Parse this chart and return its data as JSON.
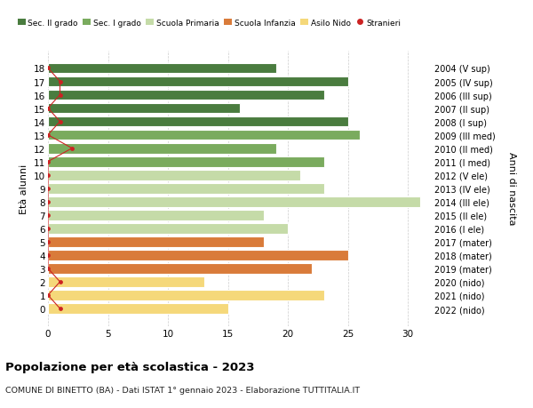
{
  "ages": [
    18,
    17,
    16,
    15,
    14,
    13,
    12,
    11,
    10,
    9,
    8,
    7,
    6,
    5,
    4,
    3,
    2,
    1,
    0
  ],
  "right_labels": [
    "2004 (V sup)",
    "2005 (IV sup)",
    "2006 (III sup)",
    "2007 (II sup)",
    "2008 (I sup)",
    "2009 (III med)",
    "2010 (II med)",
    "2011 (I med)",
    "2012 (V ele)",
    "2013 (IV ele)",
    "2014 (III ele)",
    "2015 (II ele)",
    "2016 (I ele)",
    "2017 (mater)",
    "2018 (mater)",
    "2019 (mater)",
    "2020 (nido)",
    "2021 (nido)",
    "2022 (nido)"
  ],
  "bar_values": [
    19,
    25,
    23,
    16,
    25,
    26,
    19,
    23,
    21,
    23,
    31,
    18,
    20,
    18,
    25,
    22,
    13,
    23,
    15
  ],
  "bar_colors": [
    "#4a7c3f",
    "#4a7c3f",
    "#4a7c3f",
    "#4a7c3f",
    "#4a7c3f",
    "#7aab5e",
    "#7aab5e",
    "#7aab5e",
    "#c5dba8",
    "#c5dba8",
    "#c5dba8",
    "#c5dba8",
    "#c5dba8",
    "#d97b3a",
    "#d97b3a",
    "#d97b3a",
    "#f5d87a",
    "#f5d87a",
    "#f5d87a"
  ],
  "stranieri_values": [
    0,
    1,
    1,
    0,
    1,
    0,
    2,
    0,
    0,
    0,
    0,
    0,
    0,
    0,
    0,
    0,
    1,
    0,
    1
  ],
  "stranieri_color": "#cc2222",
  "ylabel": "Età alunni",
  "right_ylabel": "Anni di nascita",
  "xlim": [
    0,
    32
  ],
  "xticks": [
    0,
    5,
    10,
    15,
    20,
    25,
    30
  ],
  "title": "Popolazione per età scolastica - 2023",
  "subtitle": "COMUNE DI BINETTO (BA) - Dati ISTAT 1° gennaio 2023 - Elaborazione TUTTITALIA.IT",
  "legend_labels": [
    "Sec. II grado",
    "Sec. I grado",
    "Scuola Primaria",
    "Scuola Infanzia",
    "Asilo Nido",
    "Stranieri"
  ],
  "legend_colors": [
    "#4a7c3f",
    "#7aab5e",
    "#c5dba8",
    "#d97b3a",
    "#f5d87a",
    "#cc2222"
  ],
  "bar_height": 0.78,
  "background_color": "#ffffff",
  "grid_color": "#cccccc"
}
